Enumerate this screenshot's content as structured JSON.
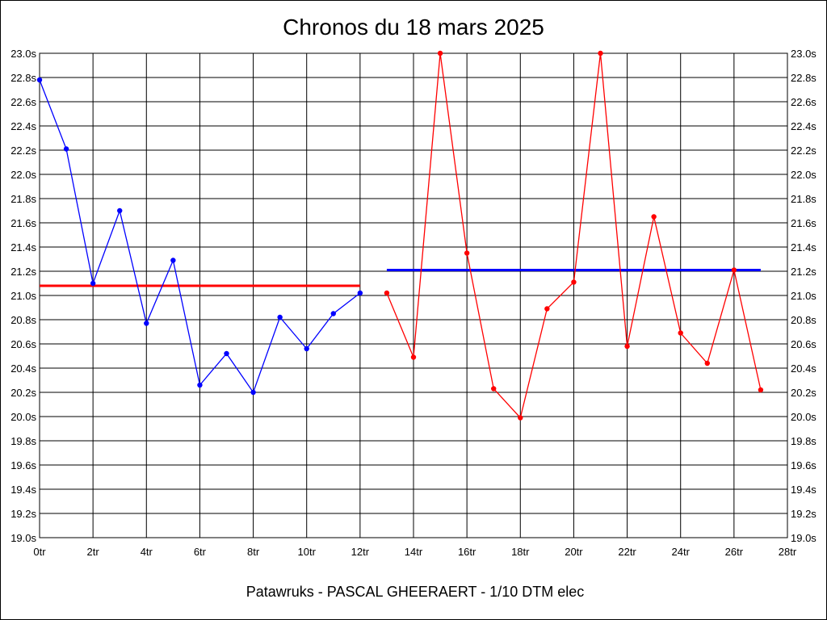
{
  "chart_data": {
    "type": "line",
    "title": "Chronos du 18 mars 2025",
    "footer": "Patawruks - PASCAL GHEERAERT - 1/10 DTM elec",
    "xlim": [
      0,
      28
    ],
    "ylim": [
      19.0,
      23.0
    ],
    "grid": true,
    "x_ticks": [
      0,
      2,
      4,
      6,
      8,
      10,
      12,
      14,
      16,
      18,
      20,
      22,
      24,
      26,
      28
    ],
    "x_tick_labels": [
      "0tr",
      "2tr",
      "4tr",
      "6tr",
      "8tr",
      "10tr",
      "12tr",
      "14tr",
      "16tr",
      "18tr",
      "20tr",
      "22tr",
      "24tr",
      "26tr",
      "28tr"
    ],
    "y_ticks": [
      19.0,
      19.2,
      19.4,
      19.6,
      19.8,
      20.0,
      20.2,
      20.4,
      20.6,
      20.8,
      21.0,
      21.2,
      21.4,
      21.6,
      21.8,
      22.0,
      22.2,
      22.4,
      22.6,
      22.8,
      23.0
    ],
    "y_tick_labels": [
      "19.0s",
      "19.2s",
      "19.4s",
      "19.6s",
      "19.8s",
      "20.0s",
      "20.2s",
      "20.4s",
      "20.6s",
      "20.8s",
      "21.0s",
      "21.2s",
      "21.4s",
      "21.6s",
      "21.8s",
      "22.0s",
      "22.2s",
      "22.4s",
      "22.6s",
      "22.8s",
      "23.0s"
    ],
    "series": [
      {
        "color": "#0000ff",
        "x": [
          0,
          1,
          2,
          3,
          4,
          5,
          6,
          7,
          8,
          9,
          10,
          11,
          12
        ],
        "values": [
          22.78,
          22.21,
          21.1,
          21.7,
          20.77,
          21.29,
          20.26,
          20.52,
          20.2,
          20.82,
          20.56,
          20.85,
          21.02
        ]
      },
      {
        "color": "#ff0000",
        "x": [
          13,
          14,
          15,
          16,
          17,
          18,
          19,
          20,
          21,
          22,
          23,
          24,
          25,
          26,
          27
        ],
        "values": [
          21.02,
          20.49,
          23.0,
          21.35,
          20.23,
          19.99,
          20.89,
          21.11,
          23.0,
          20.58,
          21.65,
          20.69,
          20.44,
          21.21,
          20.22
        ]
      }
    ],
    "reference_lines": [
      {
        "color": "#ff0000",
        "value": 21.08,
        "x_range": [
          0,
          12
        ]
      },
      {
        "color": "#0000ff",
        "value": 21.21,
        "x_range": [
          13,
          27
        ]
      }
    ]
  }
}
